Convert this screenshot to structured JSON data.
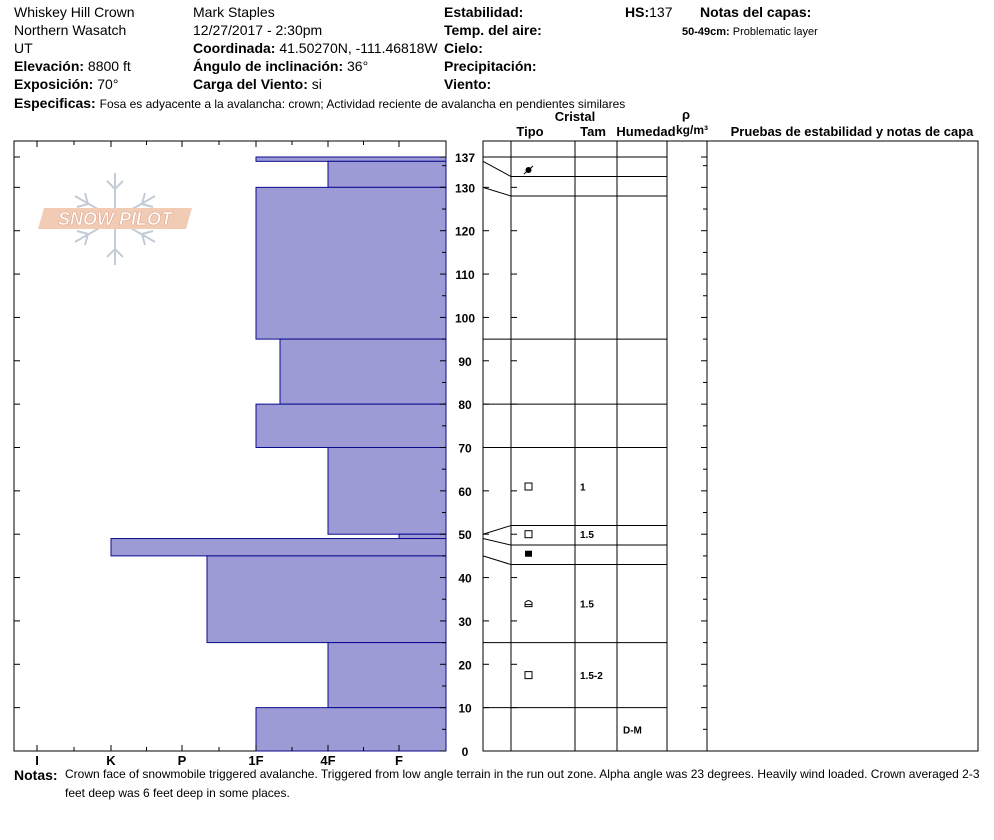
{
  "header": {
    "location": "Whiskey Hill Crown",
    "range": "Northern Wasatch",
    "state": "UT",
    "elevation_label": "Elevación:",
    "elevation_value": "8800 ft",
    "aspect_label": "Exposición:",
    "aspect_value": "70°",
    "specifics_label": "Especificas:",
    "specifics_value": "Fosa es adyacente a la avalancha: crown;  Actividad reciente de avalancha en pendientes similares",
    "observer": "Mark Staples",
    "datetime": "12/27/2017 - 2:30pm",
    "coord_label": "Coordinada:",
    "coord_value": "41.50270N, -111.46818W",
    "slope_label": "Ángulo de inclinación:",
    "slope_value": "36°",
    "wind_load_label": "Carga del Viento:",
    "wind_load_value": "si",
    "stability_label": "Estabilidad:",
    "air_temp_label": "Temp. del aire:",
    "sky_label": "Cielo:",
    "precip_label": "Precipitación:",
    "wind_label": "Viento:",
    "hs_label": "HS:",
    "hs_value": "137",
    "layer_notes_label": "Notas del capas:",
    "layer_note_depth": "50-49cm:",
    "layer_note_text": "Problematic layer"
  },
  "logo_text": "SNOW PILOT",
  "columns": {
    "crystal": "Cristal",
    "type": "Tipo",
    "size": "Tam",
    "moisture": "Humedad",
    "rho": "ρ",
    "density_unit": "kg/m³",
    "tests": "Pruebas de estabilidad y notas de capa"
  },
  "notes": {
    "label": "Notas:",
    "text": "Crown face of snowmobile triggered avalanche. Triggered from low angle terrain in the run out zone. Alpha angle was 23 degrees. Heavily wind loaded. Crown averaged 2-3 feet deep was 6 feet deep in some places."
  },
  "colors": {
    "hardness_fill": "#9c9bd6",
    "hardness_stroke": "#0a0a8c"
  },
  "chart_data": {
    "type": "snow_profile",
    "y_unit": "cm",
    "ylim": [
      0,
      137
    ],
    "y_ticks": [
      0,
      10,
      20,
      30,
      40,
      50,
      60,
      70,
      80,
      90,
      100,
      110,
      120,
      130,
      137
    ],
    "hardness_scale": [
      "I",
      "K",
      "P",
      "1F",
      "4F",
      "F"
    ],
    "hardness_profile": [
      {
        "top": 137,
        "bottom": 136,
        "hardness": "1F"
      },
      {
        "top": 136,
        "bottom": 130,
        "hardness": "4F"
      },
      {
        "top": 130,
        "bottom": 95,
        "hardness": "1F"
      },
      {
        "top": 95,
        "bottom": 80,
        "hardness": "1F-"
      },
      {
        "top": 80,
        "bottom": 70,
        "hardness": "1F"
      },
      {
        "top": 70,
        "bottom": 50,
        "hardness": "4F"
      },
      {
        "top": 50,
        "bottom": 49,
        "hardness": "4F+"
      },
      {
        "top": 49,
        "bottom": 45,
        "hardness": "K"
      },
      {
        "top": 45,
        "bottom": 25,
        "hardness": "P-"
      },
      {
        "top": 25,
        "bottom": 10,
        "hardness": "4F"
      },
      {
        "top": 10,
        "bottom": 0,
        "hardness": "1F"
      }
    ],
    "layer_boundaries": [
      137,
      132.5,
      128,
      95,
      80,
      70,
      52,
      47.5,
      43,
      25,
      10,
      0
    ],
    "crystals": [
      {
        "depth": 134,
        "symbol": "precip-particle",
        "size": ""
      },
      {
        "depth": 61,
        "symbol": "faceted",
        "size": "1"
      },
      {
        "depth": 50,
        "symbol": "faceted",
        "size": "1.5"
      },
      {
        "depth": 45.5,
        "symbol": "solid-square",
        "size": ""
      },
      {
        "depth": 34,
        "symbol": "rounding-facet",
        "size": "1.5"
      },
      {
        "depth": 17.5,
        "symbol": "faceted",
        "size": "1.5-2"
      }
    ],
    "moisture": [
      {
        "depth": 5,
        "value": "D-M"
      }
    ]
  }
}
